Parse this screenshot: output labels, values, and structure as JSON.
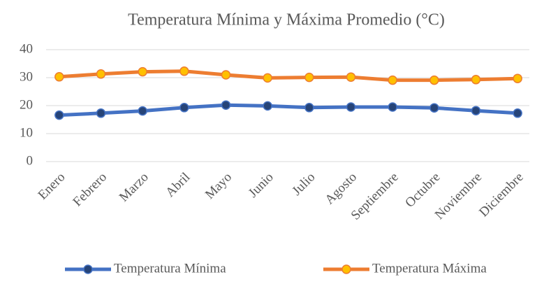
{
  "chart_data": {
    "type": "line",
    "title": "Temperatura Mínima y Máxima  Promedio (°C)",
    "categories": [
      "Enero",
      "Febrero",
      "Marzo",
      "Abril",
      "Mayo",
      "Junio",
      "Julio",
      "Agosto",
      "Septiembre",
      "Octubre",
      "Noviembre",
      "Diciembre"
    ],
    "series": [
      {
        "name": "Temperatura Mínima",
        "color": "#4472c4",
        "marker_color": "#264478",
        "values": [
          16.6,
          17.3,
          18.1,
          19.3,
          20.2,
          19.9,
          19.3,
          19.5,
          19.5,
          19.2,
          18.2,
          17.3
        ]
      },
      {
        "name": "Temperatura Máxima",
        "color": "#ed7d31",
        "marker_color": "#ffc000",
        "values": [
          30.3,
          31.3,
          32.1,
          32.3,
          31.0,
          29.9,
          30.1,
          30.2,
          29.1,
          29.1,
          29.3,
          29.7
        ]
      }
    ],
    "ylim": [
      0,
      40
    ],
    "yticks": [
      0,
      10,
      20,
      30,
      40
    ],
    "grid": true,
    "legend": "bottom"
  }
}
